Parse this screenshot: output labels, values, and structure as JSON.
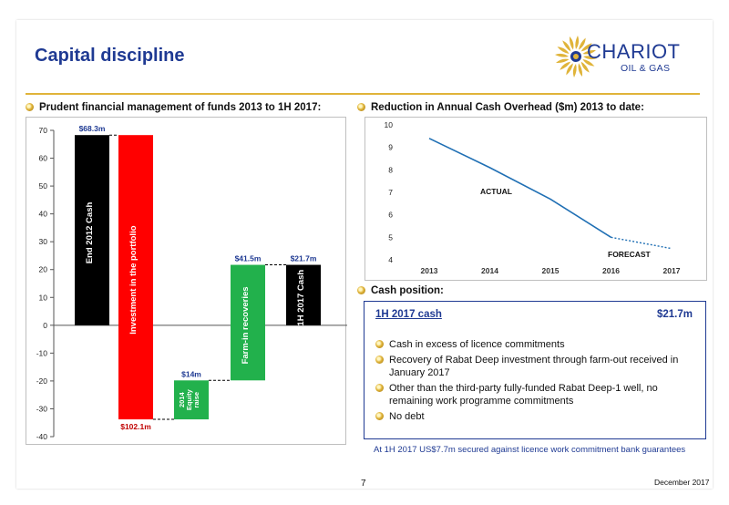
{
  "slide": {
    "title": "Capital discipline",
    "logo_name": "CHARIOT",
    "logo_sub": "OIL & GAS",
    "page_number": "7",
    "date": "December 2017",
    "accent_color": "#1f3a93",
    "rule_color": "#e0b43a"
  },
  "left_heading": "Prudent financial management of funds 2013 to 1H 2017:",
  "right_heading": "Reduction in Annual Cash Overhead ($m) 2013 to date:",
  "cash_heading": "Cash position:",
  "cash": {
    "label": "1H 2017 cash",
    "value": "$21.7m",
    "bullets": [
      "Cash in excess of licence commitments",
      "Recovery of Rabat Deep investment through farm-out received in January 2017",
      "Other than the third-party fully-funded Rabat Deep-1 well, no remaining work programme commitments",
      "No debt"
    ]
  },
  "footnote": "At 1H 2017 US$7.7m secured against licence work commitment bank guarantees",
  "chart_data": [
    {
      "type": "bar",
      "subtype": "waterfall",
      "ylim": [
        -40,
        70
      ],
      "yticks": [
        70,
        60,
        50,
        40,
        30,
        20,
        10,
        0,
        -10,
        -20,
        -30,
        -40
      ],
      "grid": false,
      "bars": [
        {
          "label": "End 2012 Cash",
          "start": 0,
          "end": 68.3,
          "color": "#000000",
          "value_label": "$68.3m",
          "label_color": "#ffffff"
        },
        {
          "label": "Investment in  the portfolio",
          "start": 68.3,
          "end": -33.8,
          "color": "#ff0000",
          "value_label": "$102.1m",
          "label_color": "#ffffff"
        },
        {
          "label": "2014 Equity raise",
          "start": -33.8,
          "end": -19.8,
          "color": "#22b14c",
          "value_label": "$14m",
          "label_color": "#ffffff"
        },
        {
          "label": "Farm-in recoveries",
          "start": -19.8,
          "end": 21.7,
          "color": "#22b14c",
          "value_label": "$41.5m",
          "label_color": "#ffffff"
        },
        {
          "label": "1H 2017 Cash",
          "start": 0,
          "end": 21.7,
          "color": "#000000",
          "value_label": "$21.7m",
          "label_color": "#ffffff"
        }
      ]
    },
    {
      "type": "line",
      "x": [
        2013,
        2014,
        2015,
        2016,
        2017
      ],
      "ylim": [
        4,
        10
      ],
      "yticks": [
        4,
        5,
        6,
        7,
        8,
        9,
        10
      ],
      "grid": false,
      "series": [
        {
          "name": "ACTUAL",
          "x": [
            2013,
            2014,
            2015,
            2016
          ],
          "values": [
            9.4,
            8.1,
            6.7,
            5.0
          ],
          "style": "solid",
          "color": "#1f6fb4"
        },
        {
          "name": "FORECAST",
          "x": [
            2016,
            2017
          ],
          "values": [
            5.0,
            4.5
          ],
          "style": "dotted",
          "color": "#1f6fb4"
        }
      ]
    }
  ]
}
